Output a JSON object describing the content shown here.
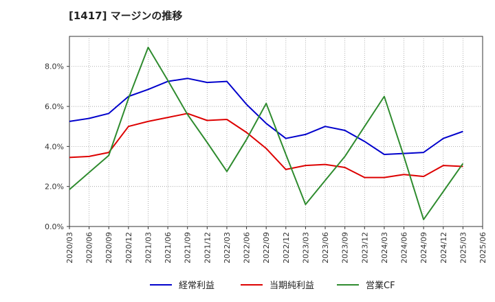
{
  "title": "[1417]  マージンの推移",
  "chart_data": {
    "type": "line",
    "x": [
      "2020/03",
      "2020/06",
      "2020/09",
      "2020/12",
      "2021/03",
      "2021/06",
      "2021/09",
      "2021/12",
      "2022/03",
      "2022/06",
      "2022/09",
      "2022/12",
      "2023/03",
      "2023/06",
      "2023/09",
      "2023/12",
      "2024/03",
      "2024/06",
      "2024/09",
      "2024/12",
      "2025/03",
      "2025/06"
    ],
    "ylim": [
      0,
      9.5
    ],
    "yticks": [
      0,
      2,
      4,
      6,
      8
    ],
    "ytick_labels": [
      "0.0%",
      "2.0%",
      "4.0%",
      "6.0%",
      "8.0%"
    ],
    "grid": true,
    "legend_position": "bottom",
    "series": [
      {
        "name": "経常利益",
        "color": "#0000cc",
        "values": [
          5.25,
          5.4,
          5.65,
          6.5,
          6.85,
          7.25,
          7.4,
          7.2,
          7.25,
          6.1,
          5.15,
          4.4,
          4.6,
          5.0,
          4.8,
          4.25,
          3.6,
          3.65,
          3.7,
          4.4,
          4.75,
          null
        ]
      },
      {
        "name": "当期純利益",
        "color": "#dd0000",
        "values": [
          3.45,
          3.5,
          3.7,
          5.0,
          5.25,
          5.45,
          5.65,
          5.3,
          5.35,
          4.7,
          3.9,
          2.85,
          3.05,
          3.1,
          2.95,
          2.45,
          2.45,
          2.6,
          2.5,
          3.05,
          3.0,
          null
        ]
      },
      {
        "name": "営業CF",
        "color": "#2e8b2e",
        "values": [
          1.85,
          2.7,
          3.55,
          6.4,
          8.95,
          7.3,
          5.6,
          4.2,
          2.75,
          4.35,
          6.15,
          3.6,
          1.1,
          2.3,
          3.5,
          5.0,
          6.5,
          3.5,
          0.35,
          1.75,
          3.15,
          null
        ]
      }
    ]
  }
}
